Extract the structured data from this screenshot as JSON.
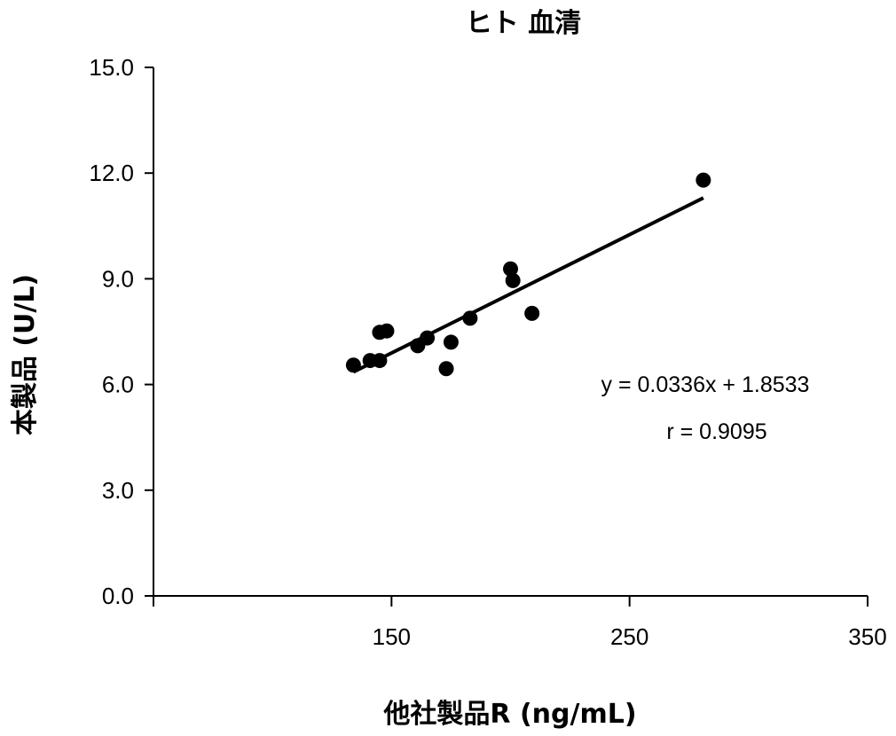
{
  "chart_data": {
    "type": "scatter",
    "title": "ヒト 血清",
    "xlabel": "他社製品R (ng/mL)",
    "ylabel": "本製品 (U/L)",
    "xlim": [
      50,
      350
    ],
    "ylim": [
      0,
      15
    ],
    "xticks": [
      "150",
      "250",
      "350"
    ],
    "yticks": [
      "0.0",
      "3.0",
      "6.0",
      "9.0",
      "12.0",
      "15.0"
    ],
    "grid": false,
    "points": [
      {
        "x": 134,
        "y": 6.55
      },
      {
        "x": 141,
        "y": 6.68
      },
      {
        "x": 145,
        "y": 6.68
      },
      {
        "x": 145,
        "y": 7.48
      },
      {
        "x": 148,
        "y": 7.52
      },
      {
        "x": 161,
        "y": 7.1
      },
      {
        "x": 165,
        "y": 7.32
      },
      {
        "x": 173,
        "y": 6.45
      },
      {
        "x": 175,
        "y": 7.2
      },
      {
        "x": 183,
        "y": 7.88
      },
      {
        "x": 200,
        "y": 9.28
      },
      {
        "x": 201,
        "y": 8.95
      },
      {
        "x": 209,
        "y": 8.02
      },
      {
        "x": 281,
        "y": 11.8
      }
    ],
    "trendline": {
      "slope": 0.0336,
      "intercept": 1.8533,
      "x_start": 134,
      "x_end": 281
    },
    "annotations": [
      "y = 0.0336x + 1.8533",
      "r = 0.9095"
    ]
  }
}
